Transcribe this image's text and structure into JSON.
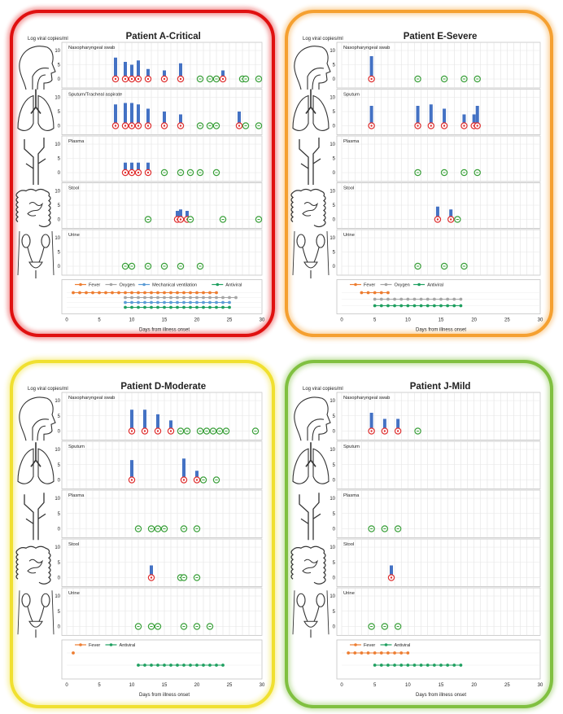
{
  "figure": {
    "ylabel": "Log viral copies/ml",
    "xlabel": "Days from illness onset",
    "specimen_labels": {
      "naso": "Nasopharyngeal swab",
      "sputum": "Sputum",
      "sputum_tracheal": "Sputum/Tracheal aspirate",
      "plasma": "Plasma",
      "stool": "Stool",
      "urine": "Urine"
    },
    "organ_icons": [
      "head-profile-icon",
      "lungs-icon",
      "vessel-icon",
      "intestine-icon",
      "urinary-tract-icon"
    ],
    "colors": {
      "bar": "#4472c4",
      "positive": "#e03030",
      "negative": "#3aa03a",
      "fever": "#ed7d31",
      "oxygen": "#a5a5a5",
      "mechanical_ventilation": "#5b9bd5",
      "antiviral": "#1fa060",
      "critical": "#e01010",
      "severe": "#f5a030",
      "moderate": "#f0e030",
      "mild": "#80c040"
    }
  },
  "chart_data": [
    {
      "type": "bar",
      "title": "Patient A-Critical",
      "severity_color": "critical",
      "xlim": [
        0,
        30
      ],
      "ylim": [
        0,
        10
      ],
      "x_ticks": [
        "0",
        "5",
        "10",
        "15",
        "20",
        "25",
        "30"
      ],
      "y_ticks": [
        "0",
        "5",
        "10"
      ],
      "panels": [
        {
          "specimen": "Nasopharyngeal swab",
          "bars": [
            {
              "x": 7.5,
              "y": 7.5
            },
            {
              "x": 9,
              "y": 6
            },
            {
              "x": 10,
              "y": 5
            },
            {
              "x": 11,
              "y": 6.5
            },
            {
              "x": 12.5,
              "y": 3.5
            },
            {
              "x": 15,
              "y": 3
            },
            {
              "x": 17.5,
              "y": 5.5
            },
            {
              "x": 24,
              "y": 3
            }
          ],
          "positive": [
            7.5,
            9,
            10,
            11,
            12.5,
            15,
            17.5,
            24
          ],
          "negative": [
            20.5,
            22,
            23,
            27,
            27.5,
            29.5
          ]
        },
        {
          "specimen": "Sputum/Tracheal aspirate",
          "bars": [
            {
              "x": 7.5,
              "y": 7.5
            },
            {
              "x": 9,
              "y": 8
            },
            {
              "x": 10,
              "y": 8
            },
            {
              "x": 11,
              "y": 7.5
            },
            {
              "x": 12.5,
              "y": 6
            },
            {
              "x": 15,
              "y": 5
            },
            {
              "x": 17.5,
              "y": 4
            },
            {
              "x": 26.5,
              "y": 5
            }
          ],
          "positive": [
            7.5,
            9,
            10,
            11,
            12.5,
            15,
            17.5,
            26.5
          ],
          "negative": [
            20.5,
            22,
            23,
            27.5,
            29.5
          ]
        },
        {
          "specimen": "Plasma",
          "bars": [
            {
              "x": 9,
              "y": 3.5
            },
            {
              "x": 10,
              "y": 3.5
            },
            {
              "x": 11,
              "y": 3.5
            },
            {
              "x": 12.5,
              "y": 3.5
            }
          ],
          "positive": [
            9,
            10,
            11,
            12.5
          ],
          "negative": [
            15,
            17.5,
            19,
            20.5,
            23
          ]
        },
        {
          "specimen": "Stool",
          "bars": [
            {
              "x": 17,
              "y": 3
            },
            {
              "x": 17.5,
              "y": 3.5
            },
            {
              "x": 18.5,
              "y": 3
            }
          ],
          "positive": [
            17,
            17.5,
            18.5
          ],
          "negative": [
            12.5,
            19,
            24,
            29.5
          ]
        },
        {
          "specimen": "Urine",
          "bars": [],
          "positive": [],
          "negative": [
            9,
            10,
            12.5,
            15,
            17.5,
            20.5
          ]
        }
      ],
      "treatments": [
        {
          "name": "Fever",
          "start": 1,
          "end": 23
        },
        {
          "name": "Oxygen",
          "start": 9,
          "end": 26
        },
        {
          "name": "Mechanical ventilation",
          "start": 9,
          "end": 25
        },
        {
          "name": "Antiviral",
          "start": 9,
          "end": 25
        }
      ]
    },
    {
      "type": "bar",
      "title": "Patient E-Severe",
      "severity_color": "severe",
      "xlim": [
        0,
        30
      ],
      "ylim": [
        0,
        10
      ],
      "x_ticks": [
        "0",
        "5",
        "10",
        "15",
        "20",
        "25",
        "30"
      ],
      "y_ticks": [
        "0",
        "5",
        "10"
      ],
      "panels": [
        {
          "specimen": "Nasopharyngeal swab",
          "bars": [
            {
              "x": 4.5,
              "y": 8
            }
          ],
          "positive": [
            4.5
          ],
          "negative": [
            11.5,
            15.5,
            18.5,
            20.5
          ]
        },
        {
          "specimen": "Sputum",
          "bars": [
            {
              "x": 4.5,
              "y": 7
            },
            {
              "x": 11.5,
              "y": 7
            },
            {
              "x": 13.5,
              "y": 7.5
            },
            {
              "x": 15.5,
              "y": 6
            },
            {
              "x": 18.5,
              "y": 4
            },
            {
              "x": 20,
              "y": 4
            },
            {
              "x": 20.5,
              "y": 7
            }
          ],
          "positive": [
            4.5,
            11.5,
            13.5,
            15.5,
            18.5,
            20,
            20.5
          ],
          "negative": []
        },
        {
          "specimen": "Plasma",
          "bars": [],
          "positive": [],
          "negative": [
            11.5,
            15.5,
            18.5,
            20.5
          ]
        },
        {
          "specimen": "Stool",
          "bars": [
            {
              "x": 14.5,
              "y": 4.5
            },
            {
              "x": 16.5,
              "y": 3.5
            }
          ],
          "positive": [
            14.5,
            16.5
          ],
          "negative": [
            17.5
          ]
        },
        {
          "specimen": "Urine",
          "bars": [],
          "positive": [],
          "negative": [
            11.5,
            15.5,
            18.5
          ]
        }
      ],
      "treatments": [
        {
          "name": "Fever",
          "start": 3,
          "end": 7
        },
        {
          "name": "Oxygen",
          "start": 5,
          "end": 18
        },
        {
          "name": "Antiviral",
          "start": 5,
          "end": 18
        }
      ]
    },
    {
      "type": "bar",
      "title": "Patient D-Moderate",
      "severity_color": "moderate",
      "xlim": [
        0,
        30
      ],
      "ylim": [
        0,
        10
      ],
      "x_ticks": [
        "0",
        "5",
        "10",
        "15",
        "20",
        "25",
        "30"
      ],
      "y_ticks": [
        "0",
        "5",
        "10"
      ],
      "panels": [
        {
          "specimen": "Nasopharyngeal swab",
          "bars": [
            {
              "x": 10,
              "y": 7
            },
            {
              "x": 12,
              "y": 7
            },
            {
              "x": 14,
              "y": 5.5
            },
            {
              "x": 16,
              "y": 3.5
            }
          ],
          "positive": [
            10,
            12,
            14,
            16
          ],
          "negative": [
            17.5,
            18.5,
            20.5,
            21.5,
            22.5,
            23.5,
            24.5,
            29
          ]
        },
        {
          "specimen": "Sputum",
          "bars": [
            {
              "x": 10,
              "y": 6.5
            },
            {
              "x": 18,
              "y": 7
            },
            {
              "x": 20,
              "y": 3
            }
          ],
          "positive": [
            10,
            18,
            20
          ],
          "negative": [
            21,
            23
          ]
        },
        {
          "specimen": "Plasma",
          "bars": [],
          "positive": [],
          "negative": [
            11,
            13,
            14,
            15,
            18,
            20
          ]
        },
        {
          "specimen": "Stool",
          "bars": [
            {
              "x": 13,
              "y": 4
            }
          ],
          "positive": [
            13
          ],
          "negative": [
            17.5,
            18,
            20
          ]
        },
        {
          "specimen": "Urine",
          "bars": [],
          "positive": [],
          "negative": [
            11,
            13,
            14,
            18,
            20,
            22
          ]
        }
      ],
      "treatments": [
        {
          "name": "Fever",
          "start": 1,
          "end": 1
        },
        {
          "name": "Antiviral",
          "start": 11,
          "end": 24
        }
      ]
    },
    {
      "type": "bar",
      "title": "Patient J-Mild",
      "severity_color": "mild",
      "xlim": [
        0,
        30
      ],
      "ylim": [
        0,
        10
      ],
      "x_ticks": [
        "0",
        "5",
        "10",
        "15",
        "20",
        "25",
        "30"
      ],
      "y_ticks": [
        "0",
        "5",
        "10"
      ],
      "panels": [
        {
          "specimen": "Nasopharyngeal swab",
          "bars": [
            {
              "x": 4.5,
              "y": 6
            },
            {
              "x": 6.5,
              "y": 4
            },
            {
              "x": 8.5,
              "y": 4
            }
          ],
          "positive": [
            4.5,
            6.5,
            8.5
          ],
          "negative": [
            11.5
          ]
        },
        {
          "specimen": "Sputum",
          "bars": [],
          "positive": [],
          "negative": []
        },
        {
          "specimen": "Plasma",
          "bars": [],
          "positive": [],
          "negative": [
            4.5,
            6.5,
            8.5
          ]
        },
        {
          "specimen": "Stool",
          "bars": [
            {
              "x": 7.5,
              "y": 4
            }
          ],
          "positive": [
            7.5
          ],
          "negative": []
        },
        {
          "specimen": "Urine",
          "bars": [],
          "positive": [],
          "negative": [
            4.5,
            6.5,
            8.5
          ]
        }
      ],
      "treatments": [
        {
          "name": "Fever",
          "start": 1,
          "end": 10
        },
        {
          "name": "Antiviral",
          "start": 5,
          "end": 18
        }
      ]
    }
  ]
}
